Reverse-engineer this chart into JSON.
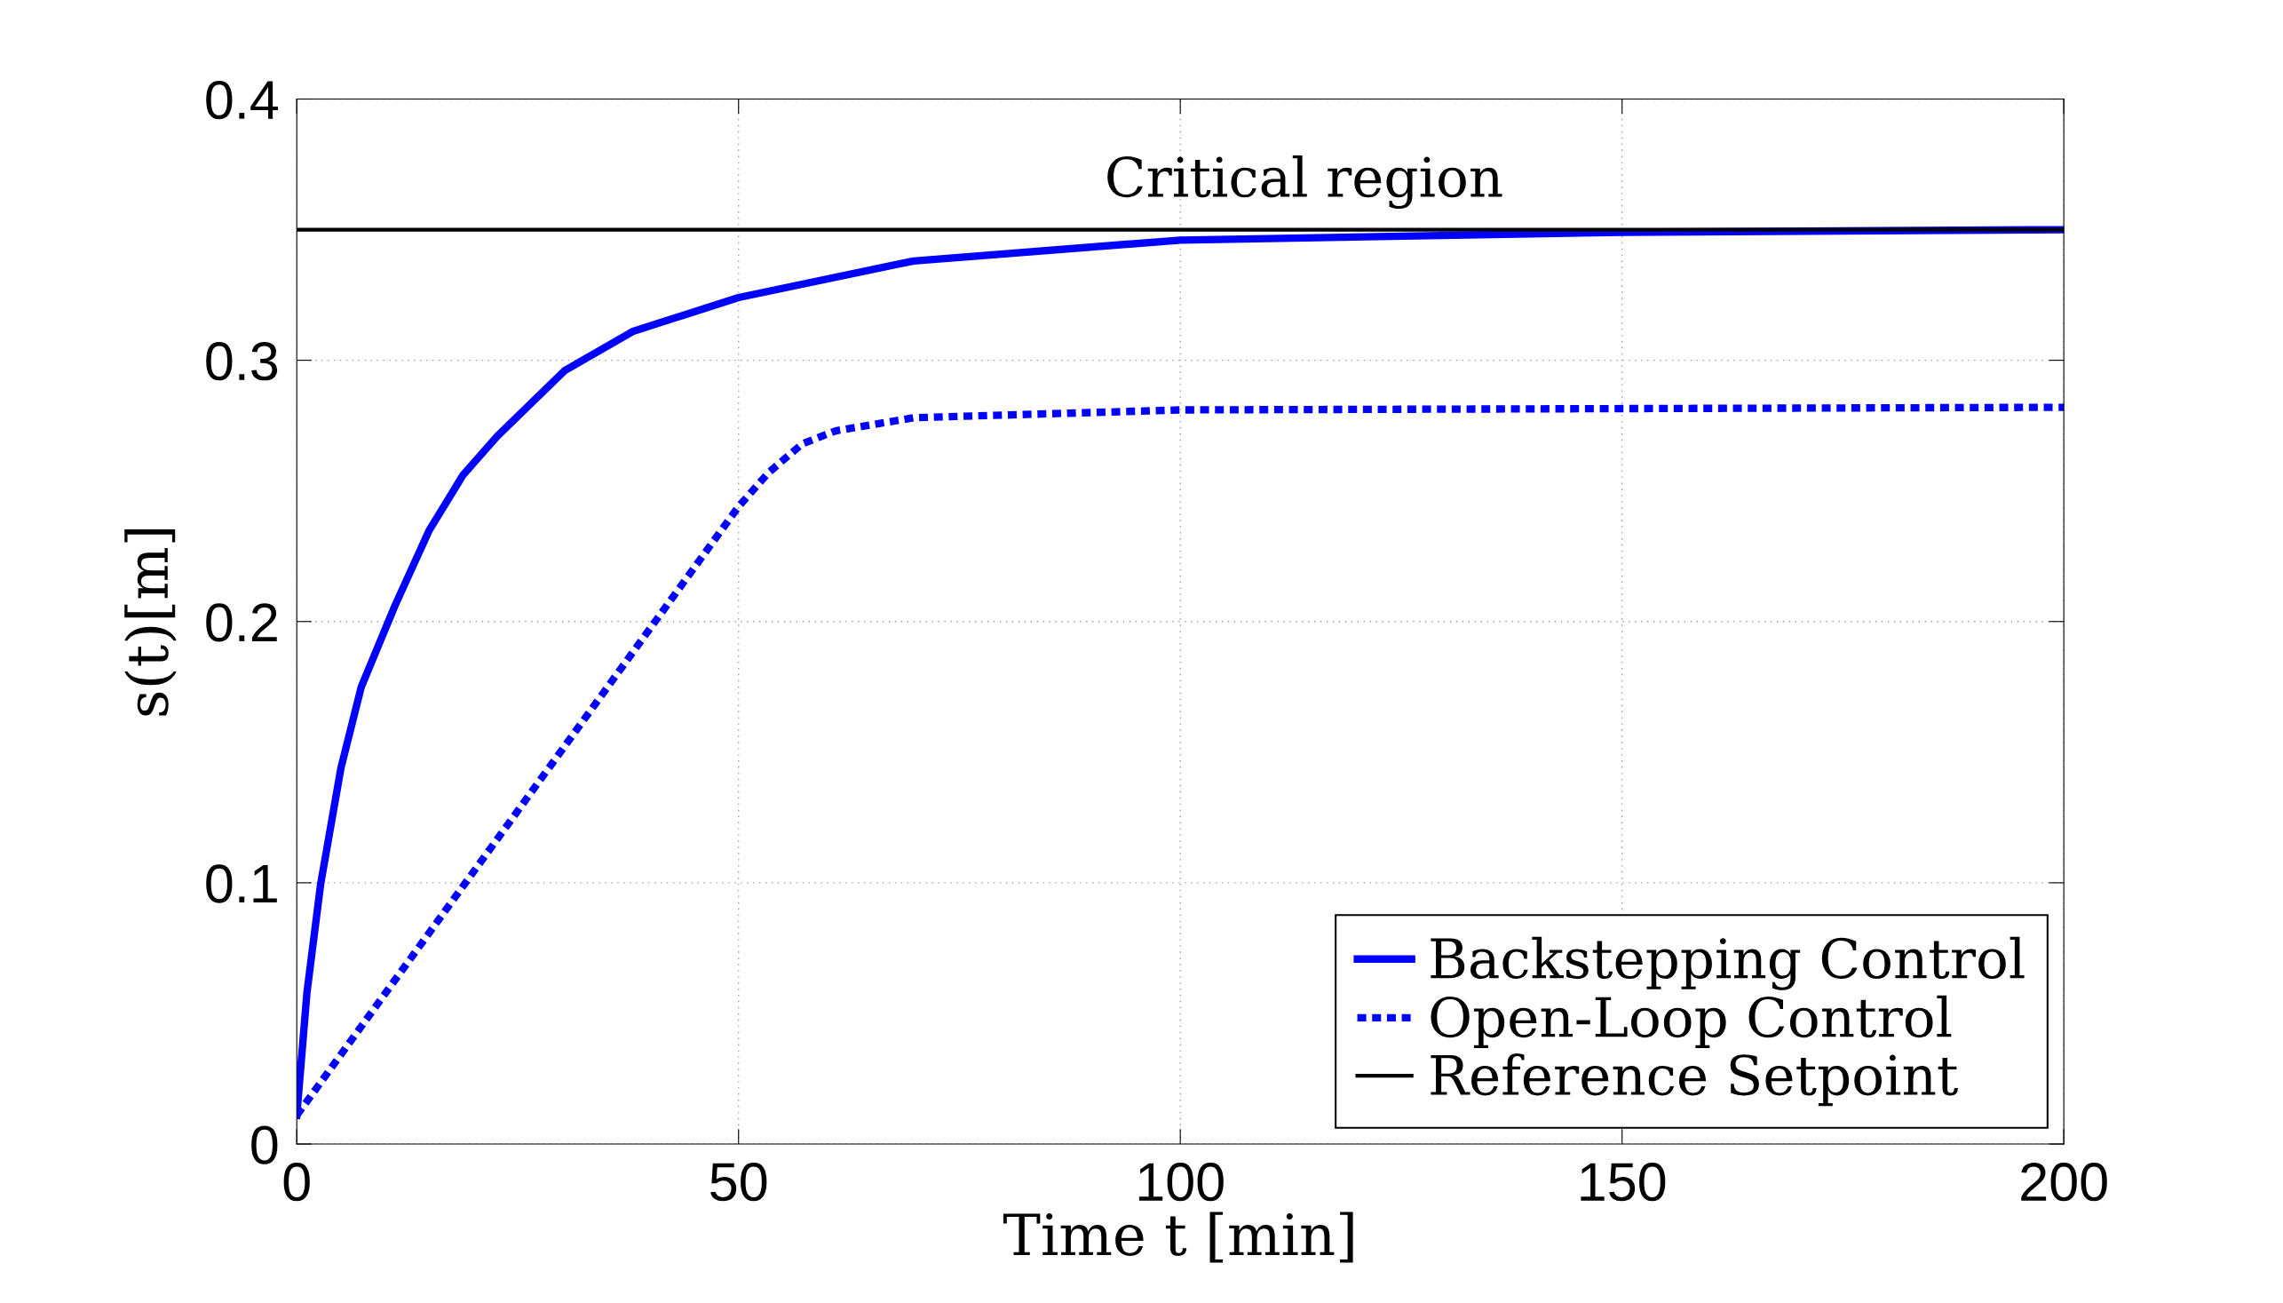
{
  "chart_data": {
    "type": "line",
    "xlabel": "Time t [min]",
    "ylabel": "s(t)[m]",
    "xlim": [
      0,
      200
    ],
    "ylim": [
      0,
      0.4
    ],
    "xticks": [
      0,
      50,
      100,
      150,
      200
    ],
    "yticks": [
      0,
      0.1,
      0.2,
      0.3,
      0.4
    ],
    "grid": true,
    "legend": "bottom right",
    "series": [
      {
        "name": "Backstepping Control",
        "color": "#0000ff",
        "line_style": "solid",
        "x": [
          0,
          1.15,
          2.7,
          5,
          7.3,
          11.1,
          15,
          18.8,
          22.7,
          30.3,
          38,
          50,
          69.8,
          100,
          150,
          200
        ],
        "values": [
          0.011,
          0.058,
          0.0995,
          0.144,
          0.175,
          0.206,
          0.235,
          0.256,
          0.271,
          0.296,
          0.311,
          0.324,
          0.338,
          0.346,
          0.349,
          0.35
        ]
      },
      {
        "name": "Open-Loop Control",
        "color": "#0000ff",
        "line_style": "dotted",
        "x": [
          0,
          50,
          53.4,
          57.2,
          61,
          69.8,
          100,
          200
        ],
        "values": [
          0.011,
          0.244,
          0.257,
          0.268,
          0.273,
          0.278,
          0.281,
          0.282
        ]
      }
    ],
    "ref_lines": [
      {
        "axis": "y",
        "value": 0.35,
        "label": "Reference Setpoint",
        "color": "#000000",
        "line_style": "solid"
      }
    ],
    "annotations": [
      "Critical region"
    ]
  }
}
